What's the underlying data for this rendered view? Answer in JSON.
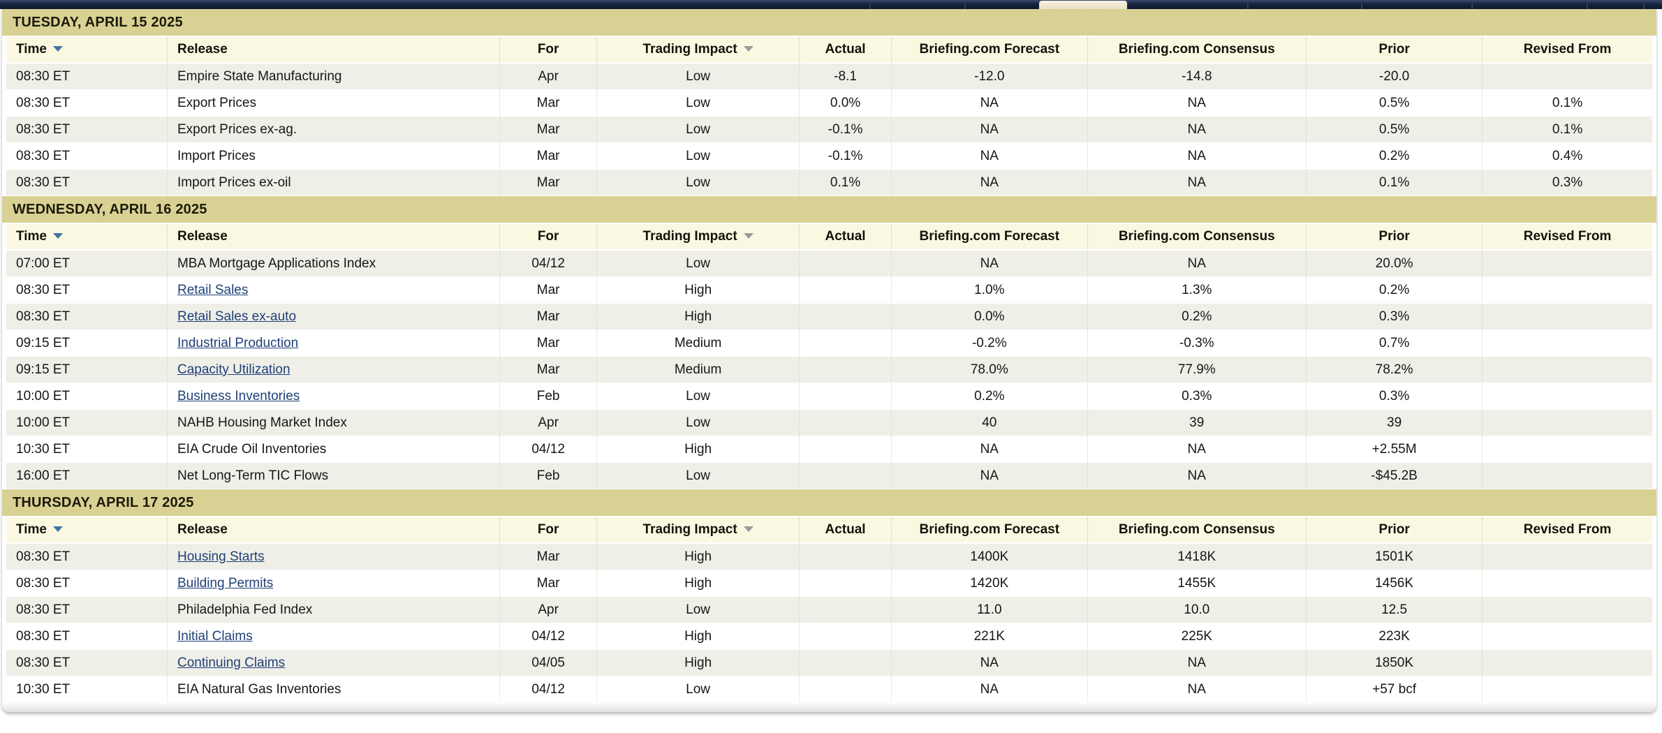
{
  "colors": {
    "section_header_bg": "#d9d193",
    "table_header_bg": "#fbf8e2",
    "row_alt_bg": "#efefe8",
    "link_color": "#1f4077",
    "sort_active_arrow": "#3f74a3",
    "sort_inactive_arrow": "#9a9a9a",
    "nav_bg": "#18243f",
    "nav_active_tab_bg": "#f0ead8"
  },
  "columns": [
    {
      "label": "Time",
      "sort": "blue",
      "align": "left",
      "width": 9.8
    },
    {
      "label": "Release",
      "sort": null,
      "align": "left",
      "width": 20.2
    },
    {
      "label": "For",
      "sort": null,
      "align": "center",
      "width": 5.9
    },
    {
      "label": "Trading Impact",
      "sort": "gray",
      "align": "center",
      "width": 12.3
    },
    {
      "label": "Actual",
      "sort": null,
      "align": "center",
      "width": 5.6
    },
    {
      "label": "Briefing.com Forecast",
      "sort": null,
      "align": "center",
      "width": 11.9
    },
    {
      "label": "Briefing.com Consensus",
      "sort": null,
      "align": "center",
      "width": 13.3
    },
    {
      "label": "Prior",
      "sort": null,
      "align": "center",
      "width": 10.7
    },
    {
      "label": "Revised From",
      "sort": null,
      "align": "center",
      "width": 10.3
    }
  ],
  "sections": [
    {
      "title": "TUESDAY, APRIL 15 2025",
      "rows": [
        {
          "time": "08:30 ET",
          "release": "Empire State Manufacturing",
          "link": false,
          "for": "Apr",
          "impact": "Low",
          "actual": "-8.1",
          "forecast": "-12.0",
          "consensus": "-14.8",
          "prior": "-20.0",
          "revised": ""
        },
        {
          "time": "08:30 ET",
          "release": "Export Prices",
          "link": false,
          "for": "Mar",
          "impact": "Low",
          "actual": "0.0%",
          "forecast": "NA",
          "consensus": "NA",
          "prior": "0.5%",
          "revised": "0.1%"
        },
        {
          "time": "08:30 ET",
          "release": "Export Prices ex-ag.",
          "link": false,
          "for": "Mar",
          "impact": "Low",
          "actual": "-0.1%",
          "forecast": "NA",
          "consensus": "NA",
          "prior": "0.5%",
          "revised": "0.1%"
        },
        {
          "time": "08:30 ET",
          "release": "Import Prices",
          "link": false,
          "for": "Mar",
          "impact": "Low",
          "actual": "-0.1%",
          "forecast": "NA",
          "consensus": "NA",
          "prior": "0.2%",
          "revised": "0.4%"
        },
        {
          "time": "08:30 ET",
          "release": "Import Prices ex-oil",
          "link": false,
          "for": "Mar",
          "impact": "Low",
          "actual": "0.1%",
          "forecast": "NA",
          "consensus": "NA",
          "prior": "0.1%",
          "revised": "0.3%"
        }
      ]
    },
    {
      "title": "WEDNESDAY, APRIL 16 2025",
      "rows": [
        {
          "time": "07:00 ET",
          "release": "MBA Mortgage Applications Index",
          "link": false,
          "for": "04/12",
          "impact": "Low",
          "actual": "",
          "forecast": "NA",
          "consensus": "NA",
          "prior": "20.0%",
          "revised": ""
        },
        {
          "time": "08:30 ET",
          "release": "Retail Sales",
          "link": true,
          "for": "Mar",
          "impact": "High",
          "actual": "",
          "forecast": "1.0%",
          "consensus": "1.3%",
          "prior": "0.2%",
          "revised": ""
        },
        {
          "time": "08:30 ET",
          "release": "Retail Sales ex-auto",
          "link": true,
          "for": "Mar",
          "impact": "High",
          "actual": "",
          "forecast": "0.0%",
          "consensus": "0.2%",
          "prior": "0.3%",
          "revised": ""
        },
        {
          "time": "09:15 ET",
          "release": "Industrial Production",
          "link": true,
          "for": "Mar",
          "impact": "Medium",
          "actual": "",
          "forecast": "-0.2%",
          "consensus": "-0.3%",
          "prior": "0.7%",
          "revised": ""
        },
        {
          "time": "09:15 ET",
          "release": "Capacity Utilization",
          "link": true,
          "for": "Mar",
          "impact": "Medium",
          "actual": "",
          "forecast": "78.0%",
          "consensus": "77.9%",
          "prior": "78.2%",
          "revised": ""
        },
        {
          "time": "10:00 ET",
          "release": "Business Inventories",
          "link": true,
          "for": "Feb",
          "impact": "Low",
          "actual": "",
          "forecast": "0.2%",
          "consensus": "0.3%",
          "prior": "0.3%",
          "revised": ""
        },
        {
          "time": "10:00 ET",
          "release": "NAHB Housing Market Index",
          "link": false,
          "for": "Apr",
          "impact": "Low",
          "actual": "",
          "forecast": "40",
          "consensus": "39",
          "prior": "39",
          "revised": ""
        },
        {
          "time": "10:30 ET",
          "release": "EIA Crude Oil Inventories",
          "link": false,
          "for": "04/12",
          "impact": "High",
          "actual": "",
          "forecast": "NA",
          "consensus": "NA",
          "prior": "+2.55M",
          "revised": ""
        },
        {
          "time": "16:00 ET",
          "release": "Net Long-Term TIC Flows",
          "link": false,
          "for": "Feb",
          "impact": "Low",
          "actual": "",
          "forecast": "NA",
          "consensus": "NA",
          "prior": "-$45.2B",
          "revised": ""
        }
      ]
    },
    {
      "title": "THURSDAY, APRIL 17 2025",
      "rows": [
        {
          "time": "08:30 ET",
          "release": "Housing Starts",
          "link": true,
          "for": "Mar",
          "impact": "High",
          "actual": "",
          "forecast": "1400K",
          "consensus": "1418K",
          "prior": "1501K",
          "revised": ""
        },
        {
          "time": "08:30 ET",
          "release": "Building Permits",
          "link": true,
          "for": "Mar",
          "impact": "High",
          "actual": "",
          "forecast": "1420K",
          "consensus": "1455K",
          "prior": "1456K",
          "revised": ""
        },
        {
          "time": "08:30 ET",
          "release": "Philadelphia Fed Index",
          "link": false,
          "for": "Apr",
          "impact": "Low",
          "actual": "",
          "forecast": "11.0",
          "consensus": "10.0",
          "prior": "12.5",
          "revised": ""
        },
        {
          "time": "08:30 ET",
          "release": "Initial Claims",
          "link": true,
          "for": "04/12",
          "impact": "High",
          "actual": "",
          "forecast": "221K",
          "consensus": "225K",
          "prior": "223K",
          "revised": ""
        },
        {
          "time": "08:30 ET",
          "release": "Continuing Claims",
          "link": true,
          "for": "04/05",
          "impact": "High",
          "actual": "",
          "forecast": "NA",
          "consensus": "NA",
          "prior": "1850K",
          "revised": ""
        },
        {
          "time": "10:30 ET",
          "release": "EIA Natural Gas Inventories",
          "link": false,
          "for": "04/12",
          "impact": "Low",
          "actual": "",
          "forecast": "NA",
          "consensus": "NA",
          "prior": "+57 bcf",
          "revised": ""
        }
      ]
    }
  ]
}
